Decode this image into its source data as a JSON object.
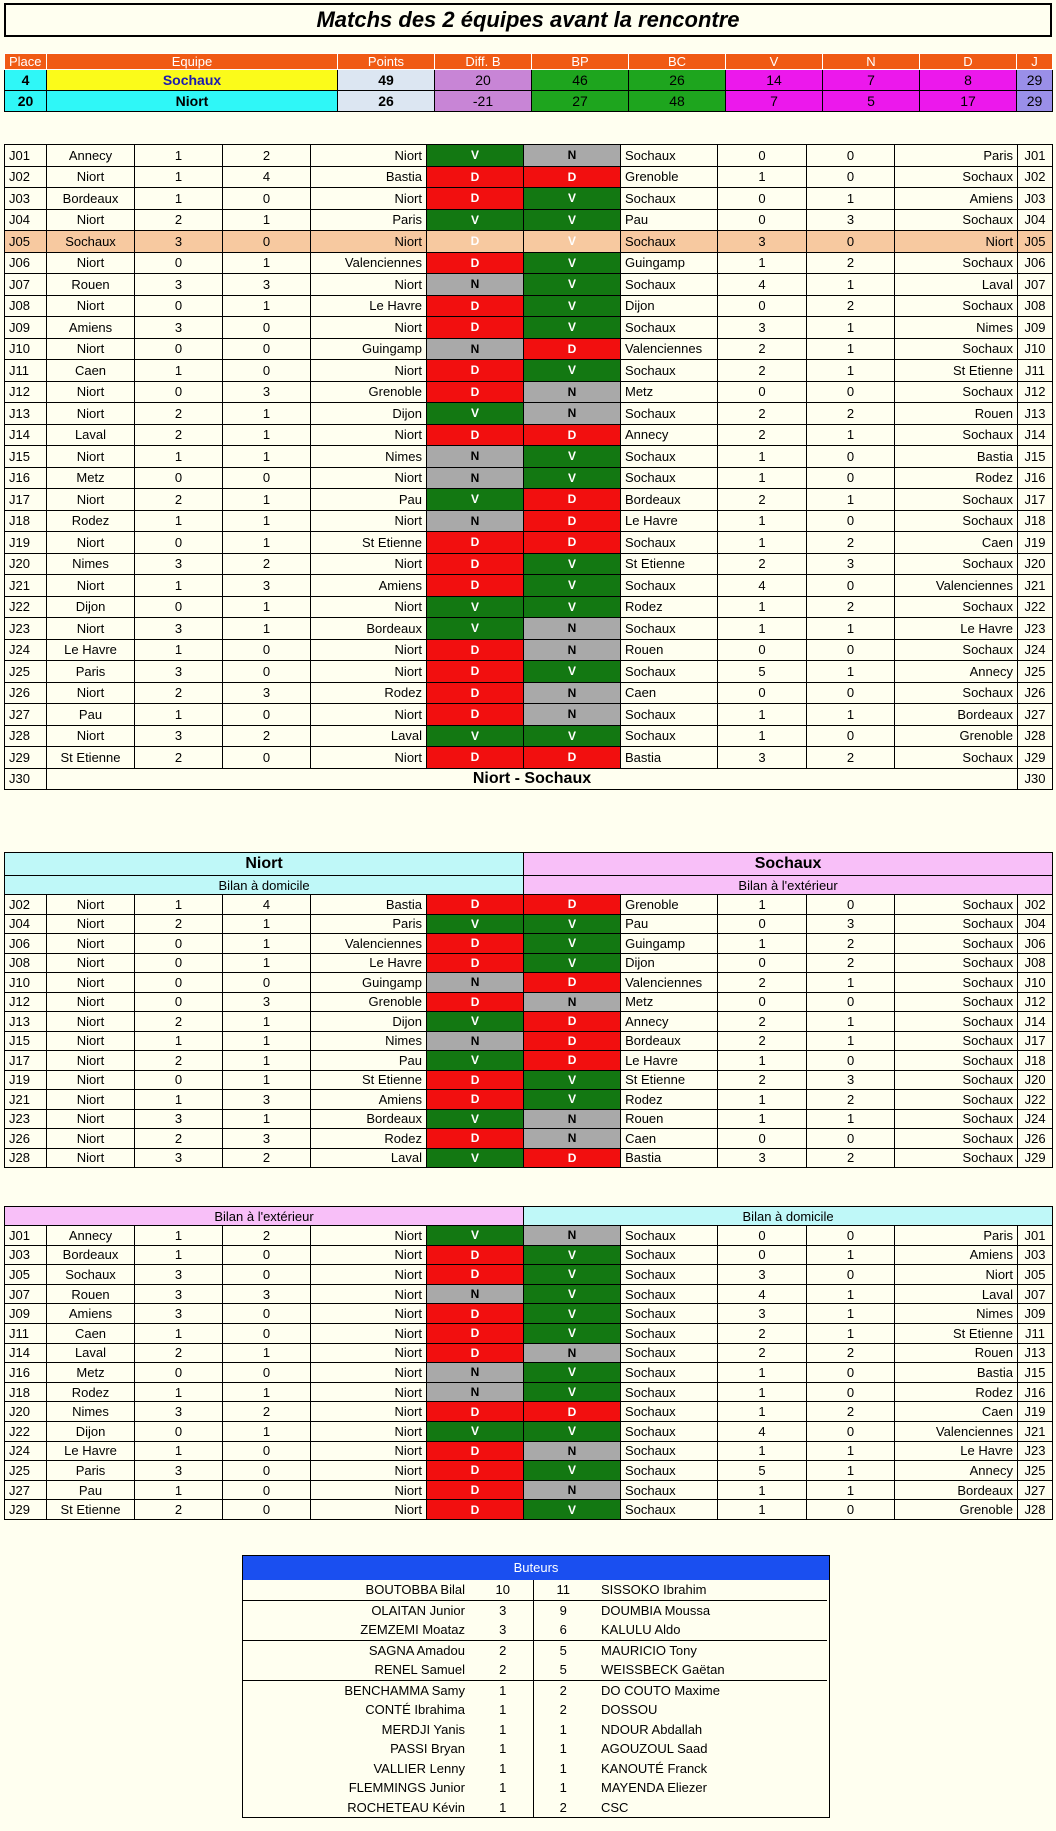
{
  "title": "Matchs des 2 équipes avant la rencontre",
  "standings": {
    "headers": [
      "Place",
      "Equipe",
      "Points",
      "Diff. B",
      "BP",
      "BC",
      "V",
      "N",
      "D",
      "J"
    ],
    "rows": [
      [
        "4",
        "Sochaux",
        "49",
        "20",
        "46",
        "26",
        "14",
        "7",
        "8",
        "29"
      ],
      [
        "20",
        "Niort",
        "26",
        "-21",
        "27",
        "48",
        "7",
        "5",
        "17",
        "29"
      ]
    ]
  },
  "matches": [
    [
      "J01",
      "Annecy",
      "1",
      "2",
      "Niort",
      "V",
      "N",
      "Sochaux",
      "0",
      "0",
      "Paris",
      "J01"
    ],
    [
      "J02",
      "Niort",
      "1",
      "4",
      "Bastia",
      "D",
      "D",
      "Grenoble",
      "1",
      "0",
      "Sochaux",
      "J02"
    ],
    [
      "J03",
      "Bordeaux",
      "1",
      "0",
      "Niort",
      "D",
      "V",
      "Sochaux",
      "0",
      "1",
      "Amiens",
      "J03"
    ],
    [
      "J04",
      "Niort",
      "2",
      "1",
      "Paris",
      "V",
      "V",
      "Pau",
      "0",
      "3",
      "Sochaux",
      "J04"
    ],
    [
      "J05",
      "Sochaux",
      "3",
      "0",
      "Niort",
      "D",
      "V",
      "Sochaux",
      "3",
      "0",
      "Niort",
      "J05"
    ],
    [
      "J06",
      "Niort",
      "0",
      "1",
      "Valenciennes",
      "D",
      "V",
      "Guingamp",
      "1",
      "2",
      "Sochaux",
      "J06"
    ],
    [
      "J07",
      "Rouen",
      "3",
      "3",
      "Niort",
      "N",
      "V",
      "Sochaux",
      "4",
      "1",
      "Laval",
      "J07"
    ],
    [
      "J08",
      "Niort",
      "0",
      "1",
      "Le Havre",
      "D",
      "V",
      "Dijon",
      "0",
      "2",
      "Sochaux",
      "J08"
    ],
    [
      "J09",
      "Amiens",
      "3",
      "0",
      "Niort",
      "D",
      "V",
      "Sochaux",
      "3",
      "1",
      "Nimes",
      "J09"
    ],
    [
      "J10",
      "Niort",
      "0",
      "0",
      "Guingamp",
      "N",
      "D",
      "Valenciennes",
      "2",
      "1",
      "Sochaux",
      "J10"
    ],
    [
      "J11",
      "Caen",
      "1",
      "0",
      "Niort",
      "D",
      "V",
      "Sochaux",
      "2",
      "1",
      "St Etienne",
      "J11"
    ],
    [
      "J12",
      "Niort",
      "0",
      "3",
      "Grenoble",
      "D",
      "N",
      "Metz",
      "0",
      "0",
      "Sochaux",
      "J12"
    ],
    [
      "J13",
      "Niort",
      "2",
      "1",
      "Dijon",
      "V",
      "N",
      "Sochaux",
      "2",
      "2",
      "Rouen",
      "J13"
    ],
    [
      "J14",
      "Laval",
      "2",
      "1",
      "Niort",
      "D",
      "D",
      "Annecy",
      "2",
      "1",
      "Sochaux",
      "J14"
    ],
    [
      "J15",
      "Niort",
      "1",
      "1",
      "Nimes",
      "N",
      "V",
      "Sochaux",
      "1",
      "0",
      "Bastia",
      "J15"
    ],
    [
      "J16",
      "Metz",
      "0",
      "0",
      "Niort",
      "N",
      "V",
      "Sochaux",
      "1",
      "0",
      "Rodez",
      "J16"
    ],
    [
      "J17",
      "Niort",
      "2",
      "1",
      "Pau",
      "V",
      "D",
      "Bordeaux",
      "2",
      "1",
      "Sochaux",
      "J17"
    ],
    [
      "J18",
      "Rodez",
      "1",
      "1",
      "Niort",
      "N",
      "D",
      "Le Havre",
      "1",
      "0",
      "Sochaux",
      "J18"
    ],
    [
      "J19",
      "Niort",
      "0",
      "1",
      "St Etienne",
      "D",
      "D",
      "Sochaux",
      "1",
      "2",
      "Caen",
      "J19"
    ],
    [
      "J20",
      "Nimes",
      "3",
      "2",
      "Niort",
      "D",
      "V",
      "St Etienne",
      "2",
      "3",
      "Sochaux",
      "J20"
    ],
    [
      "J21",
      "Niort",
      "1",
      "3",
      "Amiens",
      "D",
      "V",
      "Sochaux",
      "4",
      "0",
      "Valenciennes",
      "J21"
    ],
    [
      "J22",
      "Dijon",
      "0",
      "1",
      "Niort",
      "V",
      "V",
      "Rodez",
      "1",
      "2",
      "Sochaux",
      "J22"
    ],
    [
      "J23",
      "Niort",
      "3",
      "1",
      "Bordeaux",
      "V",
      "N",
      "Sochaux",
      "1",
      "1",
      "Le Havre",
      "J23"
    ],
    [
      "J24",
      "Le Havre",
      "1",
      "0",
      "Niort",
      "D",
      "N",
      "Rouen",
      "0",
      "0",
      "Sochaux",
      "J24"
    ],
    [
      "J25",
      "Paris",
      "3",
      "0",
      "Niort",
      "D",
      "V",
      "Sochaux",
      "5",
      "1",
      "Annecy",
      "J25"
    ],
    [
      "J26",
      "Niort",
      "2",
      "3",
      "Rodez",
      "D",
      "N",
      "Caen",
      "0",
      "0",
      "Sochaux",
      "J26"
    ],
    [
      "J27",
      "Pau",
      "1",
      "0",
      "Niort",
      "D",
      "N",
      "Sochaux",
      "1",
      "1",
      "Bordeaux",
      "J27"
    ],
    [
      "J28",
      "Niort",
      "3",
      "2",
      "Laval",
      "V",
      "V",
      "Sochaux",
      "1",
      "0",
      "Grenoble",
      "J28"
    ],
    [
      "J29",
      "St Etienne",
      "2",
      "0",
      "Niort",
      "D",
      "D",
      "Bastia",
      "3",
      "2",
      "Sochaux",
      "J29"
    ]
  ],
  "next_match": {
    "day": "J30",
    "label": "Niort - Sochaux"
  },
  "section2": {
    "left_team": "Niort",
    "right_team": "Sochaux",
    "left_sub": "Bilan à domicile",
    "right_sub": "Bilan à l'extérieur",
    "rows": [
      [
        "J02",
        "Niort",
        "1",
        "4",
        "Bastia",
        "D",
        "D",
        "Grenoble",
        "1",
        "0",
        "Sochaux",
        "J02"
      ],
      [
        "J04",
        "Niort",
        "2",
        "1",
        "Paris",
        "V",
        "V",
        "Pau",
        "0",
        "3",
        "Sochaux",
        "J04"
      ],
      [
        "J06",
        "Niort",
        "0",
        "1",
        "Valenciennes",
        "D",
        "V",
        "Guingamp",
        "1",
        "2",
        "Sochaux",
        "J06"
      ],
      [
        "J08",
        "Niort",
        "0",
        "1",
        "Le Havre",
        "D",
        "V",
        "Dijon",
        "0",
        "2",
        "Sochaux",
        "J08"
      ],
      [
        "J10",
        "Niort",
        "0",
        "0",
        "Guingamp",
        "N",
        "D",
        "Valenciennes",
        "2",
        "1",
        "Sochaux",
        "J10"
      ],
      [
        "J12",
        "Niort",
        "0",
        "3",
        "Grenoble",
        "D",
        "N",
        "Metz",
        "0",
        "0",
        "Sochaux",
        "J12"
      ],
      [
        "J13",
        "Niort",
        "2",
        "1",
        "Dijon",
        "V",
        "D",
        "Annecy",
        "2",
        "1",
        "Sochaux",
        "J14"
      ],
      [
        "J15",
        "Niort",
        "1",
        "1",
        "Nimes",
        "N",
        "D",
        "Bordeaux",
        "2",
        "1",
        "Sochaux",
        "J17"
      ],
      [
        "J17",
        "Niort",
        "2",
        "1",
        "Pau",
        "V",
        "D",
        "Le Havre",
        "1",
        "0",
        "Sochaux",
        "J18"
      ],
      [
        "J19",
        "Niort",
        "0",
        "1",
        "St Etienne",
        "D",
        "V",
        "St Etienne",
        "2",
        "3",
        "Sochaux",
        "J20"
      ],
      [
        "J21",
        "Niort",
        "1",
        "3",
        "Amiens",
        "D",
        "V",
        "Rodez",
        "1",
        "2",
        "Sochaux",
        "J22"
      ],
      [
        "J23",
        "Niort",
        "3",
        "1",
        "Bordeaux",
        "V",
        "N",
        "Rouen",
        "1",
        "1",
        "Sochaux",
        "J24"
      ],
      [
        "J26",
        "Niort",
        "2",
        "3",
        "Rodez",
        "D",
        "N",
        "Caen",
        "0",
        "0",
        "Sochaux",
        "J26"
      ],
      [
        "J28",
        "Niort",
        "3",
        "2",
        "Laval",
        "V",
        "D",
        "Bastia",
        "3",
        "2",
        "Sochaux",
        "J29"
      ]
    ]
  },
  "section3": {
    "left_sub": "Bilan à l'extérieur",
    "right_sub": "Bilan à domicile",
    "rows": [
      [
        "J01",
        "Annecy",
        "1",
        "2",
        "Niort",
        "V",
        "N",
        "Sochaux",
        "0",
        "0",
        "Paris",
        "J01"
      ],
      [
        "J03",
        "Bordeaux",
        "1",
        "0",
        "Niort",
        "D",
        "V",
        "Sochaux",
        "0",
        "1",
        "Amiens",
        "J03"
      ],
      [
        "J05",
        "Sochaux",
        "3",
        "0",
        "Niort",
        "D",
        "V",
        "Sochaux",
        "3",
        "0",
        "Niort",
        "J05"
      ],
      [
        "J07",
        "Rouen",
        "3",
        "3",
        "Niort",
        "N",
        "V",
        "Sochaux",
        "4",
        "1",
        "Laval",
        "J07"
      ],
      [
        "J09",
        "Amiens",
        "3",
        "0",
        "Niort",
        "D",
        "V",
        "Sochaux",
        "3",
        "1",
        "Nimes",
        "J09"
      ],
      [
        "J11",
        "Caen",
        "1",
        "0",
        "Niort",
        "D",
        "V",
        "Sochaux",
        "2",
        "1",
        "St Etienne",
        "J11"
      ],
      [
        "J14",
        "Laval",
        "2",
        "1",
        "Niort",
        "D",
        "N",
        "Sochaux",
        "2",
        "2",
        "Rouen",
        "J13"
      ],
      [
        "J16",
        "Metz",
        "0",
        "0",
        "Niort",
        "N",
        "V",
        "Sochaux",
        "1",
        "0",
        "Bastia",
        "J15"
      ],
      [
        "J18",
        "Rodez",
        "1",
        "1",
        "Niort",
        "N",
        "V",
        "Sochaux",
        "1",
        "0",
        "Rodez",
        "J16"
      ],
      [
        "J20",
        "Nimes",
        "3",
        "2",
        "Niort",
        "D",
        "D",
        "Sochaux",
        "1",
        "2",
        "Caen",
        "J19"
      ],
      [
        "J22",
        "Dijon",
        "0",
        "1",
        "Niort",
        "V",
        "V",
        "Sochaux",
        "4",
        "0",
        "Valenciennes",
        "J21"
      ],
      [
        "J24",
        "Le Havre",
        "1",
        "0",
        "Niort",
        "D",
        "N",
        "Sochaux",
        "1",
        "1",
        "Le Havre",
        "J23"
      ],
      [
        "J25",
        "Paris",
        "3",
        "0",
        "Niort",
        "D",
        "V",
        "Sochaux",
        "5",
        "1",
        "Annecy",
        "J25"
      ],
      [
        "J27",
        "Pau",
        "1",
        "0",
        "Niort",
        "D",
        "N",
        "Sochaux",
        "1",
        "1",
        "Bordeaux",
        "J27"
      ],
      [
        "J29",
        "St Etienne",
        "2",
        "0",
        "Niort",
        "D",
        "V",
        "Sochaux",
        "1",
        "0",
        "Grenoble",
        "J28"
      ]
    ]
  },
  "buteurs": {
    "title": "Buteurs",
    "rows": [
      [
        "BOUTOBBA Bilal",
        "10",
        "11",
        "SISSOKO Ibrahim"
      ],
      [
        "OLAITAN Junior",
        "3",
        "9",
        "DOUMBIA Moussa"
      ],
      [
        "ZEMZEMI Moataz",
        "3",
        "6",
        "KALULU Aldo"
      ],
      [
        "SAGNA Amadou",
        "2",
        "5",
        "MAURICIO Tony"
      ],
      [
        "RENEL Samuel",
        "2",
        "5",
        "WEISSBECK Gaëtan"
      ],
      [
        "BENCHAMMA Samy",
        "1",
        "2",
        "DO COUTO Maxime"
      ],
      [
        "CONTÉ Ibrahima",
        "1",
        "2",
        "DOSSOU"
      ],
      [
        "MERDJI Yanis",
        "1",
        "1",
        "NDOUR Abdallah"
      ],
      [
        "PASSI Bryan",
        "1",
        "1",
        "AGOUZOUL Saad"
      ],
      [
        "VALLIER Lenny",
        "1",
        "1",
        "KANOUTÉ Franck"
      ],
      [
        "FLEMMINGS Junior",
        "1",
        "1",
        "MAYENDA Eliezer"
      ],
      [
        "ROCHETEAU Kévin",
        "1",
        "2",
        "CSC"
      ]
    ]
  },
  "colors": {
    "win": "#137812",
    "loss": "#f20f0f",
    "draw": "#a9a9a9",
    "header": "#f05a14",
    "buteurs_header": "#1a4ff0",
    "niort_bg": "#bff8f8",
    "sochaux_bg": "#f8bff8"
  }
}
